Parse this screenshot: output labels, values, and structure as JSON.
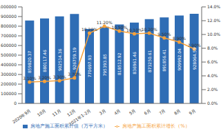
{
  "chart_data": {
    "type": "bar",
    "categories": [
      "2020年9月",
      "10月",
      "11月",
      "12月",
      "2021年1-2月",
      "3月",
      "4月",
      "5月",
      "6月",
      "7月",
      "8月",
      "9月"
    ],
    "series": [
      {
        "name": "房地产施工面积累计值（万平方米）",
        "type": "bar",
        "color": "#2f6db5",
        "values": [
          859820.37,
          880117.46,
          902514.36,
          926759.19,
          770697.93,
          795393.85,
          818512.92,
          836961.46,
          873250.61,
          891856.41,
          909992.04,
          928064.59
        ]
      },
      {
        "name": "房地产施工面积累计增长（%）",
        "type": "line",
        "axis": "y2",
        "color": "#f5a13b",
        "marker": "circle",
        "values": [
          3.1,
          3.2,
          3.3,
          3.7,
          10.2,
          11.2,
          10.5,
          10.1,
          10.2,
          9.5,
          8.9,
          7.9
        ],
        "value_labels": [
          "3.10%",
          "3.20%",
          "3.30%",
          "3.70%",
          "10.20%",
          "11.20%",
          "10.50%",
          "10.10%",
          "10.20%",
          "9.50%",
          "8.90%",
          "7.90%"
        ]
      }
    ],
    "ylim": [
      0,
      1000000
    ],
    "yticks": [
      0,
      100000,
      200000,
      300000,
      400000,
      500000,
      600000,
      700000,
      800000,
      900000,
      1000000
    ],
    "y2lim": [
      0,
      14
    ],
    "y2ticks": [
      {
        "value": 0,
        "label": "0.0%"
      },
      {
        "value": 2,
        "label": "2.0%"
      },
      {
        "value": 4,
        "label": "4.0%"
      },
      {
        "value": 6,
        "label": "6.0%"
      },
      {
        "value": 8,
        "label": "8.0%"
      },
      {
        "value": 10,
        "label": "10.0%"
      },
      {
        "value": 12,
        "label": "12.0%"
      },
      {
        "value": 14,
        "label": "14.0%"
      }
    ],
    "data_labels": true,
    "grid": false,
    "legend": "bottom"
  }
}
